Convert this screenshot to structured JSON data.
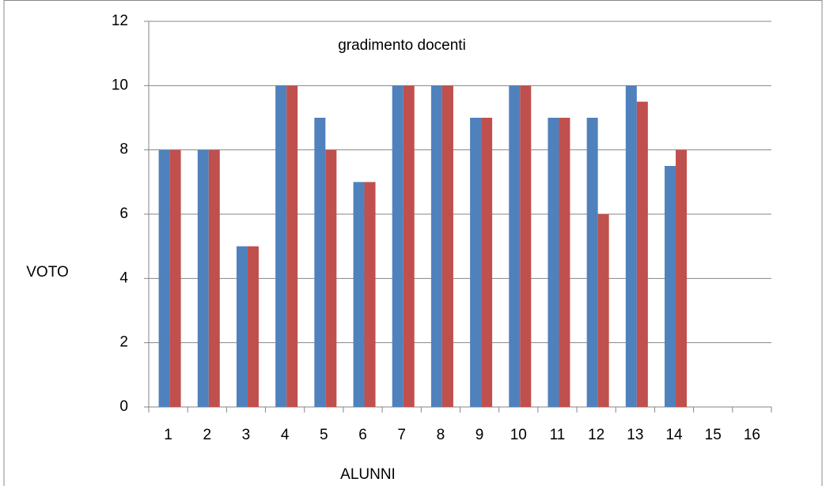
{
  "chart_data": {
    "type": "bar",
    "title": "gradimento docenti",
    "x_label": "ALUNNI",
    "y_label": "VOTO",
    "categories": [
      "1",
      "2",
      "3",
      "4",
      "5",
      "6",
      "7",
      "8",
      "9",
      "10",
      "11",
      "12",
      "13",
      "14",
      "15",
      "16"
    ],
    "series": [
      {
        "color": "#4f81bd",
        "values": [
          8,
          8,
          5,
          10,
          9,
          7,
          10,
          10,
          9,
          10,
          9,
          9,
          10,
          7.5,
          null,
          null
        ]
      },
      {
        "color": "#c0504d",
        "values": [
          8,
          8,
          5,
          10,
          8,
          7,
          10,
          10,
          9,
          10,
          9,
          6,
          9.5,
          8,
          null,
          null
        ]
      }
    ],
    "ylim": [
      0,
      12
    ],
    "yticks": [
      0,
      2,
      4,
      6,
      8,
      10,
      12
    ],
    "grid": true
  }
}
